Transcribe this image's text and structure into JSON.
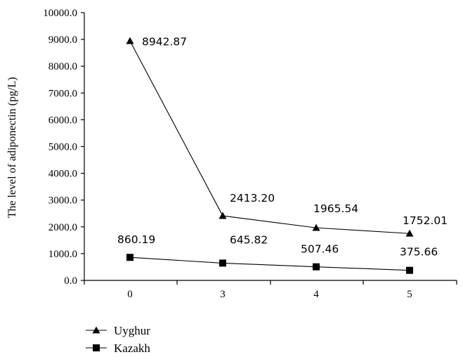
{
  "chart_data": {
    "type": "line",
    "categories": [
      "0",
      "3",
      "4",
      "5"
    ],
    "ylabel": "The level of adiponectin (pg/L)",
    "xlabel": "",
    "ylim": [
      0,
      10000
    ],
    "yticks": [
      "0.0",
      "1000.0",
      "2000.0",
      "3000.0",
      "4000.0",
      "5000.0",
      "6000.0",
      "7000.0",
      "8000.0",
      "9000.0",
      "10000.0"
    ],
    "grid": false,
    "legend_position": "bottom-left",
    "series": [
      {
        "name": "Uyghur",
        "marker": "triangle",
        "values": [
          8942.87,
          2413.2,
          1965.54,
          1752.01
        ],
        "labels": [
          "8942.87",
          "2413.20",
          "1965.54",
          "1752.01"
        ]
      },
      {
        "name": "Kazakh",
        "marker": "square",
        "values": [
          860.19,
          645.82,
          507.46,
          375.66
        ],
        "labels": [
          "860.19",
          "645.82",
          "507.46",
          "375.66"
        ]
      }
    ],
    "line_color": "#000000"
  }
}
